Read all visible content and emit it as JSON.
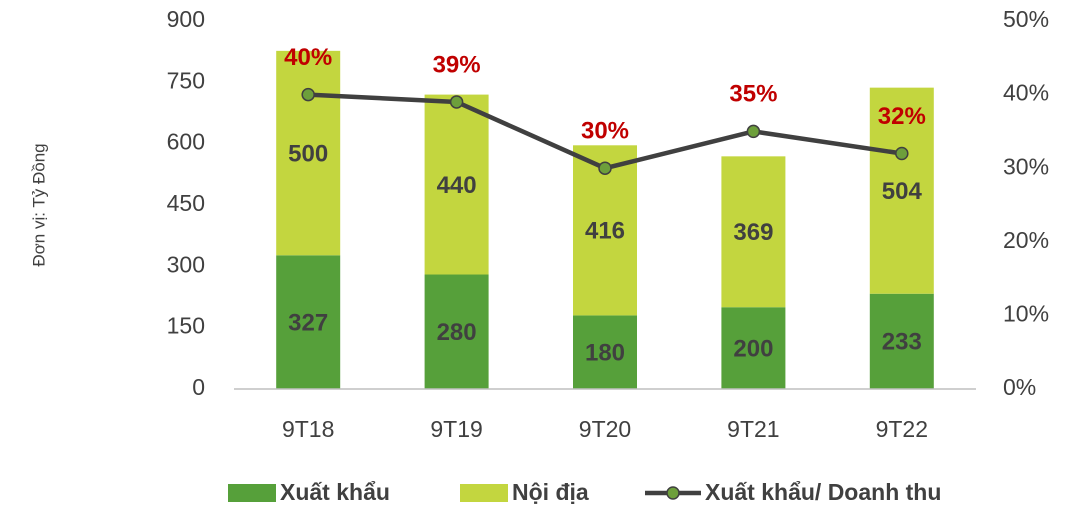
{
  "chart_data": {
    "type": "bar",
    "stacked": true,
    "y_axis_label": "Đơn vị: Tỷ Đồng",
    "categories": [
      "9T18",
      "9T19",
      "9T20",
      "9T21",
      "9T22"
    ],
    "series": [
      {
        "name": "Xuất khẩu",
        "color": "#56a03a",
        "values": [
          327,
          280,
          180,
          200,
          233
        ]
      },
      {
        "name": "Nội địa",
        "color": "#c3d63f",
        "values": [
          500,
          440,
          416,
          369,
          504
        ]
      },
      {
        "name": "Xuất khẩu/ Doanh thu",
        "type": "line",
        "axis": "y2",
        "color": "#404040",
        "marker_color": "#6d9f3b",
        "values": [
          40,
          39,
          30,
          35,
          32
        ],
        "value_labels": [
          "40%",
          "39%",
          "30%",
          "35%",
          "32%"
        ],
        "label_color": "#c00000"
      }
    ],
    "ylim": [
      0,
      900
    ],
    "yticks": [
      0,
      150,
      300,
      450,
      600,
      750,
      900
    ],
    "y2lim": [
      0,
      50
    ],
    "y2ticks": [
      {
        "value": 0,
        "label": "0%"
      },
      {
        "value": 10,
        "label": "10%"
      },
      {
        "value": 20,
        "label": "20%"
      },
      {
        "value": 30,
        "label": "30%"
      },
      {
        "value": 40,
        "label": "40%"
      },
      {
        "value": 50,
        "label": "50%"
      }
    ],
    "grid": false,
    "legend": "bottom"
  }
}
